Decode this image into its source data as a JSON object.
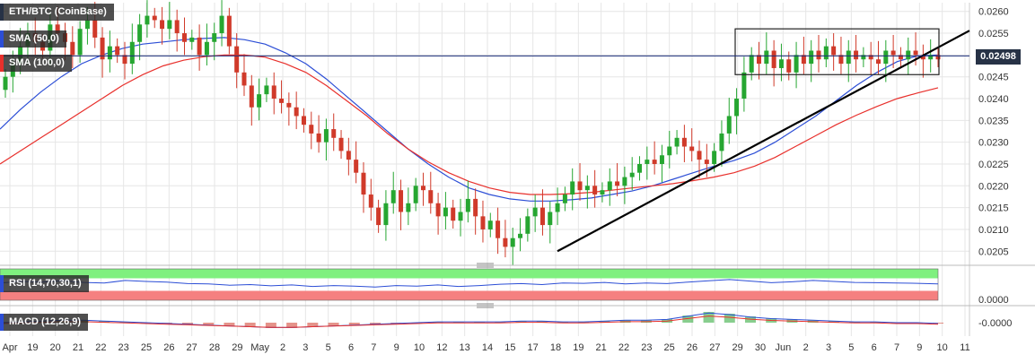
{
  "chart_data": {
    "type": "candlestick",
    "title": "ETH/BTC (CoinBase)",
    "current_price": "0.02498",
    "ylim": [
      0.0203,
      0.0262
    ],
    "y_ticks": [
      "0.0260",
      "0.0255",
      "0.0250",
      "0.0245",
      "0.0240",
      "0.0235",
      "0.0230",
      "0.0225",
      "0.0220",
      "0.0215",
      "0.0210",
      "0.0205"
    ],
    "x_ticks": [
      "Apr",
      "19",
      "20",
      "21",
      "22",
      "23",
      "25",
      "26",
      "27",
      "28",
      "29",
      "May",
      "2",
      "3",
      "5",
      "6",
      "7",
      "9",
      "10",
      "12",
      "13",
      "14",
      "15",
      "17",
      "18",
      "19",
      "21",
      "22",
      "23",
      "25",
      "26",
      "27",
      "29",
      "30",
      "Jun",
      "2",
      "3",
      "5",
      "6",
      "7",
      "9",
      "10",
      "11"
    ],
    "candle_closes": [
      0.0245,
      0.0248,
      0.0252,
      0.0255,
      0.0253,
      0.0251,
      0.0257,
      0.0255,
      0.0253,
      0.025,
      0.0256,
      0.0258,
      0.0254,
      0.0249,
      0.0252,
      0.025,
      0.0248,
      0.0253,
      0.0257,
      0.0259,
      0.0258,
      0.0256,
      0.0258,
      0.0255,
      0.0253,
      0.0254,
      0.025,
      0.0253,
      0.0255,
      0.0259,
      0.0252,
      0.0246,
      0.0243,
      0.0238,
      0.0241,
      0.0243,
      0.024,
      0.0239,
      0.0238,
      0.0236,
      0.0234,
      0.0232,
      0.023,
      0.0233,
      0.0231,
      0.0228,
      0.0226,
      0.0223,
      0.0218,
      0.0215,
      0.0211,
      0.0216,
      0.0219,
      0.0214,
      0.0216,
      0.022,
      0.0219,
      0.0216,
      0.0213,
      0.0215,
      0.0212,
      0.0214,
      0.0217,
      0.0213,
      0.021,
      0.0212,
      0.0208,
      0.0206,
      0.0208,
      0.0209,
      0.0213,
      0.0215,
      0.0211,
      0.0214,
      0.0216,
      0.0218,
      0.0221,
      0.0219,
      0.022,
      0.0218,
      0.0219,
      0.0221,
      0.022,
      0.0222,
      0.0223,
      0.0225,
      0.0226,
      0.0225,
      0.0227,
      0.0229,
      0.0231,
      0.0229,
      0.0228,
      0.0226,
      0.0225,
      0.0228,
      0.0232,
      0.0236,
      0.024,
      0.0246,
      0.025,
      0.0248,
      0.0251,
      0.0247,
      0.0249,
      0.0246,
      0.025,
      0.0248,
      0.0251,
      0.0249,
      0.0252,
      0.025,
      0.0248,
      0.0251,
      0.0249,
      0.025,
      0.0249,
      0.0248,
      0.0251,
      0.025,
      0.0249,
      0.0251,
      0.025,
      0.0249,
      0.025,
      0.0249
    ],
    "indicators": [
      {
        "name": "SMA (50,0)",
        "color": "#2c4ed6",
        "values": [
          0.0233,
          0.02375,
          0.02415,
          0.0245,
          0.0248,
          0.025,
          0.02515,
          0.02525,
          0.0253,
          0.02535,
          0.02538,
          0.0254,
          0.02535,
          0.02525,
          0.02505,
          0.0248,
          0.02445,
          0.02405,
          0.02365,
          0.02325,
          0.02285,
          0.0225,
          0.0222,
          0.02195,
          0.0218,
          0.0217,
          0.02165,
          0.02165,
          0.02168,
          0.02172,
          0.0218,
          0.02188,
          0.022,
          0.02215,
          0.0223,
          0.02245,
          0.02258,
          0.02275,
          0.023,
          0.0233,
          0.0236,
          0.02395,
          0.0243,
          0.0246,
          0.02485,
          0.02498,
          0.025
        ]
      },
      {
        "name": "SMA (100,0)",
        "color": "#e8302c",
        "values": [
          0.0225,
          0.0228,
          0.0231,
          0.0234,
          0.0237,
          0.024,
          0.0243,
          0.02455,
          0.02475,
          0.02488,
          0.02496,
          0.025,
          0.025,
          0.02495,
          0.0248,
          0.0246,
          0.0243,
          0.02395,
          0.0236,
          0.0232,
          0.02285,
          0.02255,
          0.0223,
          0.0221,
          0.02195,
          0.02185,
          0.0218,
          0.0218,
          0.02182,
          0.02185,
          0.0219,
          0.02195,
          0.022,
          0.02205,
          0.02212,
          0.0222,
          0.0223,
          0.02245,
          0.02265,
          0.0229,
          0.02315,
          0.0234,
          0.02362,
          0.02382,
          0.024,
          0.02413,
          0.02425
        ]
      }
    ],
    "trendline": {
      "from": [
        0.0205,
        "18"
      ],
      "to": [
        0.0256,
        "11"
      ]
    },
    "rectangle": {
      "top": 0.0256,
      "bottom": 0.02455
    },
    "rsi": {
      "label": "RSI (14,70,30,1)",
      "upper": 70,
      "lower": 30,
      "values": [
        55,
        60,
        58,
        62,
        57,
        55,
        63,
        60,
        58,
        53,
        52,
        48,
        50,
        46,
        49,
        44,
        47,
        45,
        42,
        47,
        45,
        49,
        44,
        47,
        51,
        53,
        50,
        55,
        54,
        57,
        52,
        55,
        53,
        58,
        62,
        66,
        61,
        56,
        59,
        63,
        60,
        57,
        56,
        55,
        54,
        52
      ]
    },
    "rsi_axis_label": "0.0000",
    "macd": {
      "label": "MACD (12,26,9)",
      "values": [
        0.0,
        0.1,
        0.2,
        0.3,
        0.3,
        0.2,
        0.1,
        0.0,
        -0.1,
        -0.2,
        -0.3,
        -0.4,
        -0.5,
        -0.6,
        -0.6,
        -0.5,
        -0.4,
        -0.3,
        -0.2,
        -0.1,
        0.0,
        0.1,
        0.1,
        0.1,
        0.1,
        0.2,
        0.2,
        0.1,
        0.1,
        0.2,
        0.3,
        0.3,
        0.4,
        0.8,
        1.2,
        1.0,
        0.7,
        0.5,
        0.4,
        0.3,
        0.2,
        0.1,
        0.1,
        0.0,
        0.0,
        -0.1
      ]
    },
    "macd_axis_label": "-0.0000",
    "colors": {
      "up": "#26a631",
      "down": "#d03a2a",
      "grid": "#e6e6e6",
      "sma50": "#2c4ed6",
      "sma100": "#e8302c",
      "price_line": "#1a2b78",
      "rsi_line": "#2c4ed6",
      "rsi_upper_zone": "#7ff07f",
      "rsi_lower_zone": "#f58080",
      "macd_line": "#2c4ed6",
      "macd_signal": "#e8302c"
    }
  }
}
